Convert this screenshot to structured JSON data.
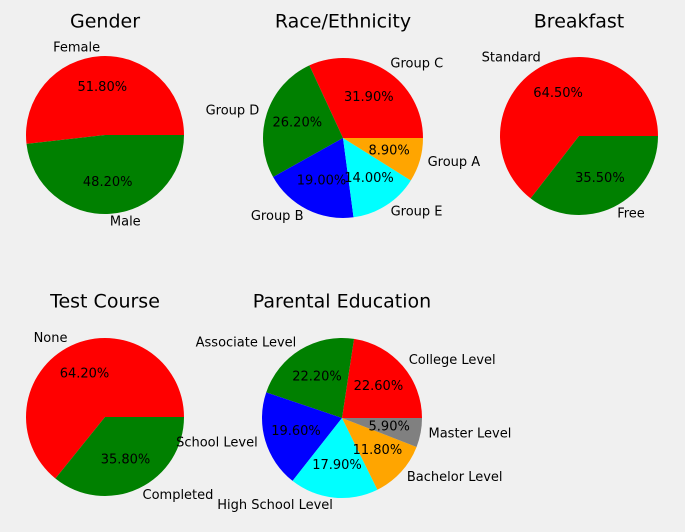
{
  "chart_data": [
    {
      "type": "pie",
      "title": "Gender",
      "labels": [
        "Female",
        "Male"
      ],
      "values": [
        51.8,
        48.2
      ],
      "pct_labels": [
        "51.80%",
        "48.20%"
      ],
      "colors": [
        "#ff0000",
        "#008000"
      ]
    },
    {
      "type": "pie",
      "title": "Race/Ethnicity",
      "labels": [
        "Group C",
        "Group D",
        "Group B",
        "Group E",
        "Group A"
      ],
      "values": [
        31.9,
        26.2,
        19.0,
        14.0,
        8.9
      ],
      "pct_labels": [
        "31.90%",
        "26.20%",
        "19.00%",
        "14.00%",
        "8.90%"
      ],
      "colors": [
        "#ff0000",
        "#008000",
        "#0000ff",
        "#00ffff",
        "#ffa500"
      ]
    },
    {
      "type": "pie",
      "title": "Breakfast",
      "labels": [
        "Standard",
        "Free"
      ],
      "values": [
        64.5,
        35.5
      ],
      "pct_labels": [
        "64.50%",
        "35.50%"
      ],
      "colors": [
        "#ff0000",
        "#008000"
      ]
    },
    {
      "type": "pie",
      "title": "Test Course",
      "labels": [
        "None",
        "Completed"
      ],
      "values": [
        64.2,
        35.8
      ],
      "pct_labels": [
        "64.20%",
        "35.80%"
      ],
      "colors": [
        "#ff0000",
        "#008000"
      ]
    },
    {
      "type": "pie",
      "title": "Parental Education",
      "labels": [
        "College Level",
        "Associate Level",
        "School Level",
        "High School Level",
        "Bachelor Level",
        "Master Level"
      ],
      "values": [
        22.6,
        22.2,
        19.6,
        17.9,
        11.8,
        5.9
      ],
      "pct_labels": [
        "22.60%",
        "22.20%",
        "19.60%",
        "17.90%",
        "11.80%",
        "5.90%"
      ],
      "colors": [
        "#ff0000",
        "#008000",
        "#0000ff",
        "#00ffff",
        "#ffa500",
        "#808080"
      ]
    }
  ]
}
